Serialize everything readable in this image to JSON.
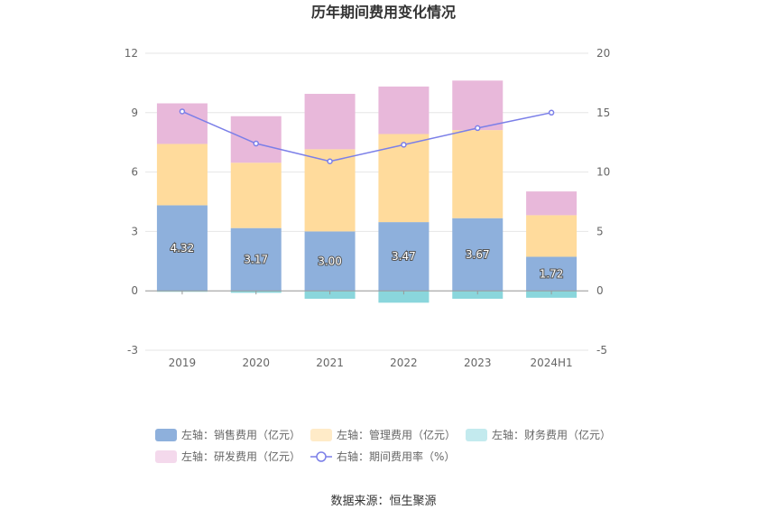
{
  "chart_data": {
    "type": "bar",
    "title": "历年期间费用变化情况",
    "categories": [
      "2019",
      "2020",
      "2021",
      "2022",
      "2023",
      "2024H1"
    ],
    "series": [
      {
        "name": "左轴：销售费用（亿元）",
        "axis": "left",
        "kind": "stacked-bar",
        "color": "#8eb0dc",
        "values": [
          4.32,
          3.17,
          3.0,
          3.47,
          3.67,
          1.72
        ],
        "labels": [
          "4.32",
          "3.17",
          "3.00",
          "3.47",
          "3.67",
          "1.72"
        ]
      },
      {
        "name": "左轴：管理费用（亿元）",
        "axis": "left",
        "kind": "stacked-bar",
        "color": "#ffdb9c",
        "values": [
          3.1,
          3.3,
          4.15,
          4.45,
          4.45,
          2.1
        ]
      },
      {
        "name": "左轴：财务费用（亿元）",
        "axis": "left",
        "kind": "stacked-bar",
        "color": "#8ad6dc",
        "values": [
          -0.05,
          -0.1,
          -0.4,
          -0.6,
          -0.4,
          -0.35
        ]
      },
      {
        "name": "左轴：研发费用（亿元）",
        "axis": "left",
        "kind": "stacked-bar",
        "color": "#e8b8da",
        "values": [
          2.05,
          2.35,
          2.8,
          2.4,
          2.5,
          1.2
        ]
      },
      {
        "name": "右轴：期间费用率（%）",
        "axis": "right",
        "kind": "line",
        "color": "#7b7fe8",
        "values": [
          15.1,
          12.4,
          10.9,
          12.3,
          13.7,
          15.0
        ]
      }
    ],
    "left_axis": {
      "ylim": [
        -3,
        12
      ],
      "ticks": [
        "12",
        "9",
        "6",
        "3",
        "0",
        "-3"
      ]
    },
    "right_axis": {
      "ylim": [
        -5,
        20
      ],
      "ticks": [
        "20",
        "15",
        "10",
        "5",
        "0",
        "-5"
      ]
    },
    "legend_position": "bottom",
    "legend_labels": [
      "左轴：销售费用（亿元）",
      "左轴：管理费用（亿元）",
      "左轴：财务费用（亿元）",
      "左轴：研发费用（亿元）",
      "右轴：期间费用率（%）"
    ],
    "grid": true
  },
  "source": "数据来源：恒生聚源"
}
